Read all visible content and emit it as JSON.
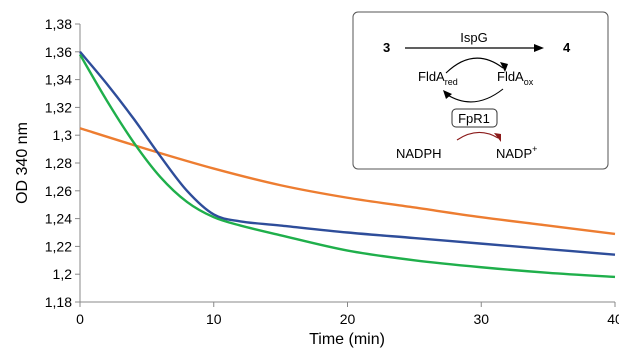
{
  "chart_data": {
    "type": "line",
    "xlabel": "Time (min)",
    "ylabel": "OD 340 nm",
    "xlim": [
      0,
      40
    ],
    "ylim": [
      1.18,
      1.38
    ],
    "x_ticks": [
      "0",
      "10",
      "20",
      "30",
      "40"
    ],
    "y_ticks": [
      "1,18",
      "1,2",
      "1,22",
      "1,24",
      "1,26",
      "1,28",
      "1,3",
      "1,32",
      "1,34",
      "1,36",
      "1,38"
    ],
    "grid": false,
    "series": [
      {
        "color": "#ED7D31",
        "x": [
          0,
          5,
          10,
          15,
          20,
          25,
          30,
          35,
          40
        ],
        "y": [
          1.305,
          1.29,
          1.276,
          1.264,
          1.255,
          1.248,
          1.241,
          1.235,
          1.229
        ]
      },
      {
        "color": "#2E4D9A",
        "x": [
          0,
          2,
          4,
          6,
          8,
          10,
          12,
          15,
          20,
          25,
          30,
          35,
          40
        ],
        "y": [
          1.36,
          1.337,
          1.312,
          1.285,
          1.26,
          1.243,
          1.238,
          1.235,
          1.23,
          1.226,
          1.222,
          1.218,
          1.214
        ]
      },
      {
        "color": "#1FAF4B",
        "x": [
          0,
          2,
          4,
          6,
          8,
          10,
          12,
          15,
          20,
          25,
          30,
          35,
          40
        ],
        "y": [
          1.358,
          1.325,
          1.295,
          1.27,
          1.252,
          1.241,
          1.235,
          1.228,
          1.217,
          1.21,
          1.205,
          1.201,
          1.198
        ]
      }
    ]
  },
  "scheme": {
    "substrate": "3",
    "product": "4",
    "enzyme": "IspG",
    "fld_red": "FldA",
    "fld_red_sub": "red",
    "fld_ox": "FldA",
    "fld_ox_sub": "ox",
    "reductase": "FpR1",
    "cofactor_red": "NADPH",
    "cofactor_ox": "NADP",
    "cofactor_ox_sup": "+",
    "substrate_color": "#1E22CC",
    "cofactor_color": "#8B1A1A"
  }
}
